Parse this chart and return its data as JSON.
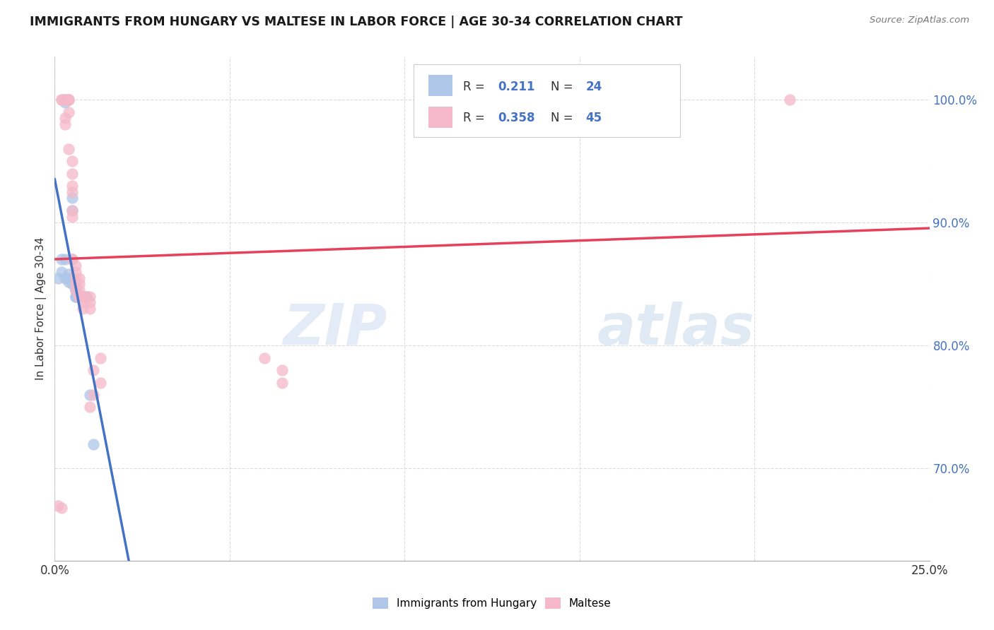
{
  "title": "IMMIGRANTS FROM HUNGARY VS MALTESE IN LABOR FORCE | AGE 30-34 CORRELATION CHART",
  "source": "Source: ZipAtlas.com",
  "ylabel": "In Labor Force | Age 30-34",
  "xmin": 0.0,
  "xmax": 0.25,
  "ymin": 0.625,
  "ymax": 1.035,
  "legend_R_hungary": "0.211",
  "legend_N_hungary": "24",
  "legend_R_maltese": "0.358",
  "legend_N_maltese": "45",
  "hungary_color": "#aec6e8",
  "maltese_color": "#f5b8c8",
  "hungary_line_color": "#4472c4",
  "maltese_line_color": "#e8405a",
  "watermark_zip": "ZIP",
  "watermark_atlas": "atlas",
  "background_color": "#ffffff",
  "grid_color": "#d3d3d3",
  "hungary_x": [
    0.001,
    0.002,
    0.002,
    0.003,
    0.003,
    0.003,
    0.003,
    0.004,
    0.004,
    0.004,
    0.005,
    0.005,
    0.005,
    0.005,
    0.005,
    0.006,
    0.006,
    0.006,
    0.006,
    0.007,
    0.008,
    0.009,
    0.01,
    0.011
  ],
  "hungary_y": [
    0.855,
    0.86,
    0.87,
    1.0,
    0.998,
    0.87,
    0.855,
    0.858,
    0.855,
    0.852,
    0.92,
    0.91,
    0.87,
    0.855,
    0.85,
    0.84,
    0.848,
    0.845,
    0.84,
    0.84,
    0.84,
    0.84,
    0.76,
    0.72
  ],
  "maltese_x": [
    0.001,
    0.002,
    0.002,
    0.003,
    0.003,
    0.003,
    0.004,
    0.004,
    0.004,
    0.004,
    0.004,
    0.005,
    0.005,
    0.005,
    0.005,
    0.005,
    0.005,
    0.005,
    0.006,
    0.006,
    0.006,
    0.006,
    0.006,
    0.007,
    0.007,
    0.007,
    0.007,
    0.007,
    0.008,
    0.008,
    0.008,
    0.009,
    0.01,
    0.01,
    0.01,
    0.01,
    0.011,
    0.011,
    0.013,
    0.013,
    0.06,
    0.065,
    0.065,
    0.21,
    0.002
  ],
  "maltese_y": [
    0.67,
    1.0,
    1.0,
    1.0,
    0.985,
    0.98,
    1.0,
    1.0,
    1.0,
    0.99,
    0.96,
    0.95,
    0.94,
    0.93,
    0.925,
    0.91,
    0.905,
    0.87,
    0.865,
    0.86,
    0.855,
    0.85,
    0.845,
    0.855,
    0.85,
    0.845,
    0.84,
    0.84,
    0.84,
    0.835,
    0.83,
    0.84,
    0.84,
    0.835,
    0.83,
    0.75,
    0.78,
    0.76,
    0.79,
    0.77,
    0.79,
    0.78,
    0.77,
    1.0,
    0.668
  ],
  "ytick_vals": [
    0.7,
    0.8,
    0.9,
    1.0
  ],
  "ytick_labels": [
    "70.0%",
    "80.0%",
    "90.0%",
    "100.0%"
  ]
}
